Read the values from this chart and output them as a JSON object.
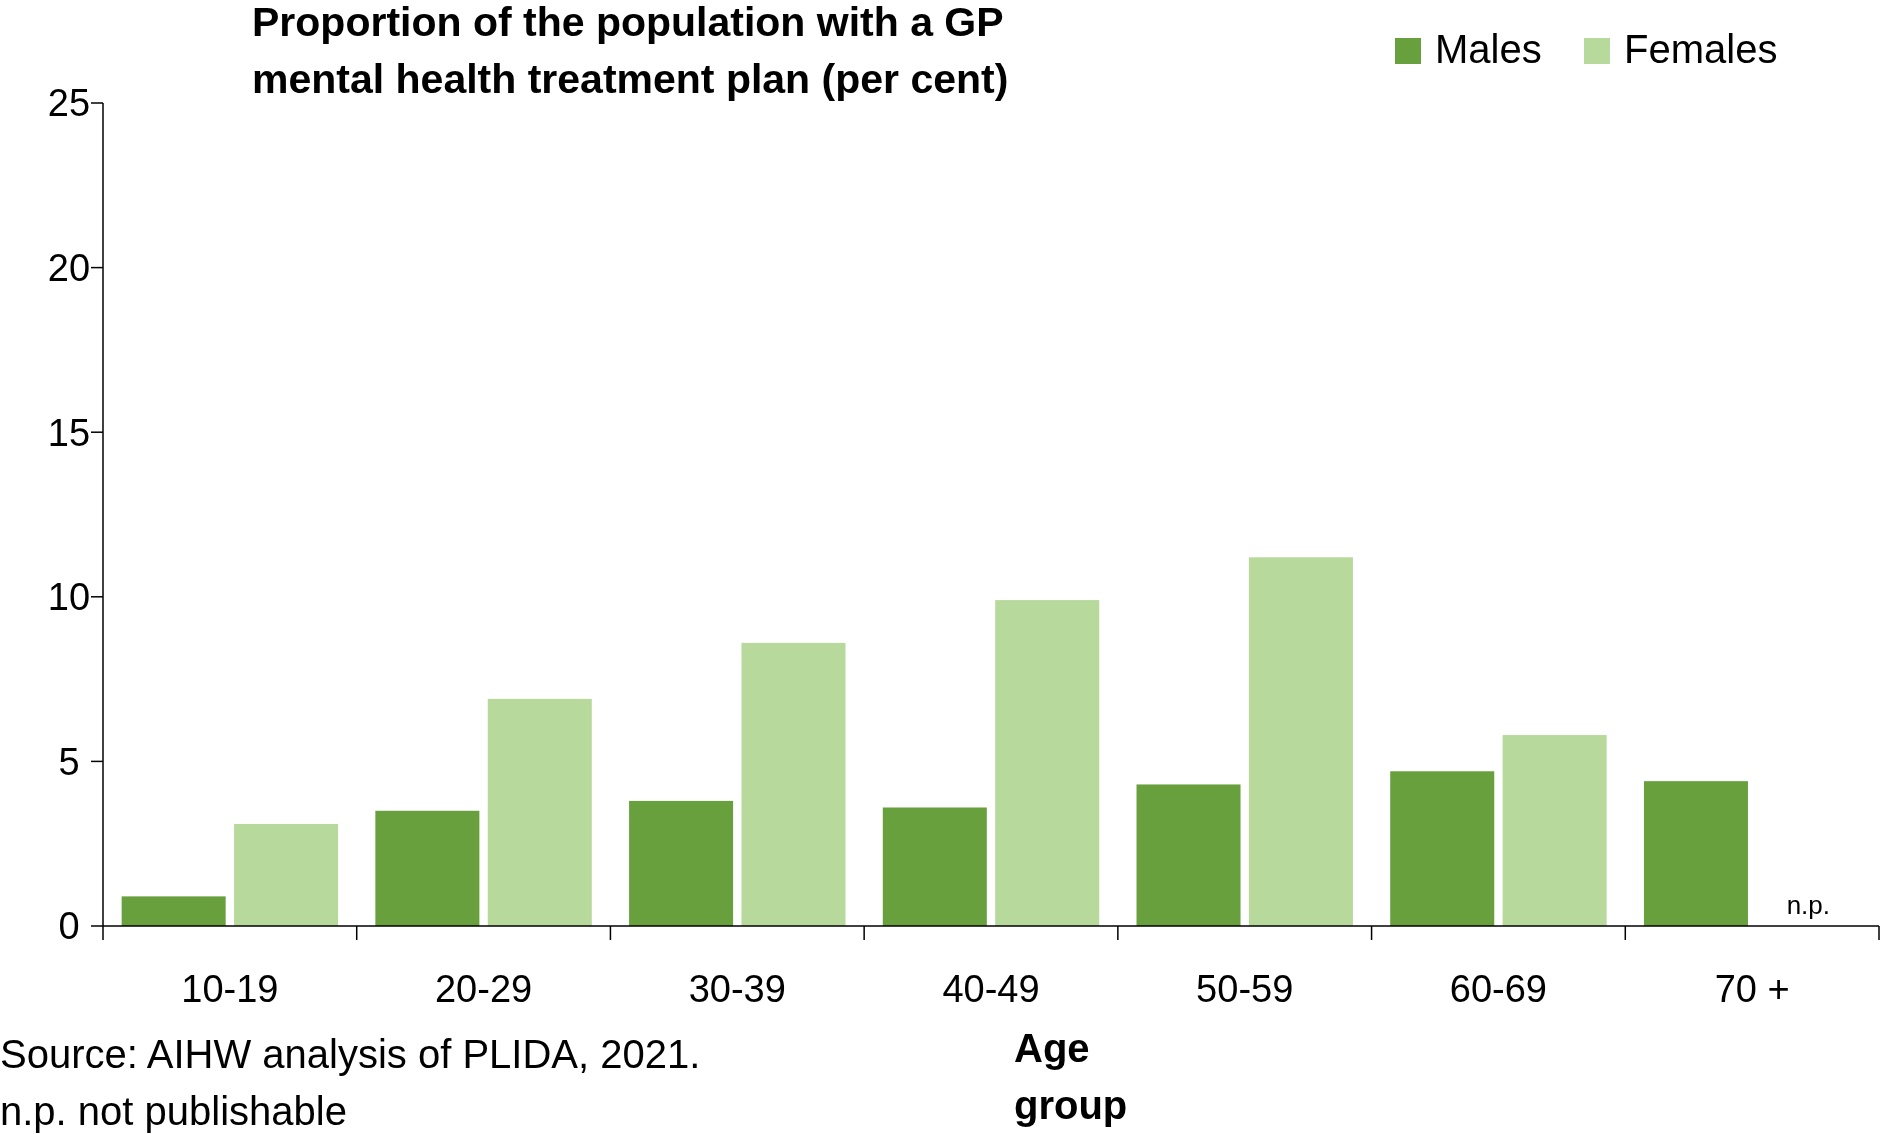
{
  "chart_data": {
    "type": "bar",
    "title": "Proportion of the population with a GP\nmental health treatment plan (per cent)",
    "xlabel": "Age\ngroup",
    "categories": [
      "10-19",
      "20-29",
      "30-39",
      "40-49",
      "50-59",
      "60-69",
      "70 +"
    ],
    "series": [
      {
        "name": "Males",
        "color": "#67a03d",
        "values": [
          0.9,
          3.5,
          3.8,
          3.6,
          4.3,
          4.7,
          4.4
        ]
      },
      {
        "name": "Females",
        "color": "#b7d99b",
        "values": [
          3.1,
          6.9,
          8.6,
          9.9,
          11.2,
          5.8,
          null
        ]
      }
    ],
    "ylim": [
      0,
      25
    ],
    "yticks": [
      0,
      5,
      10,
      15,
      20,
      25
    ],
    "grid": false,
    "legend": "top right",
    "annotations": [
      {
        "text": "n.p.",
        "x": "70 +",
        "y": 0
      },
      "Source: AIHW analysis of PLIDA, 2021.",
      "n.p. not publishable"
    ]
  }
}
